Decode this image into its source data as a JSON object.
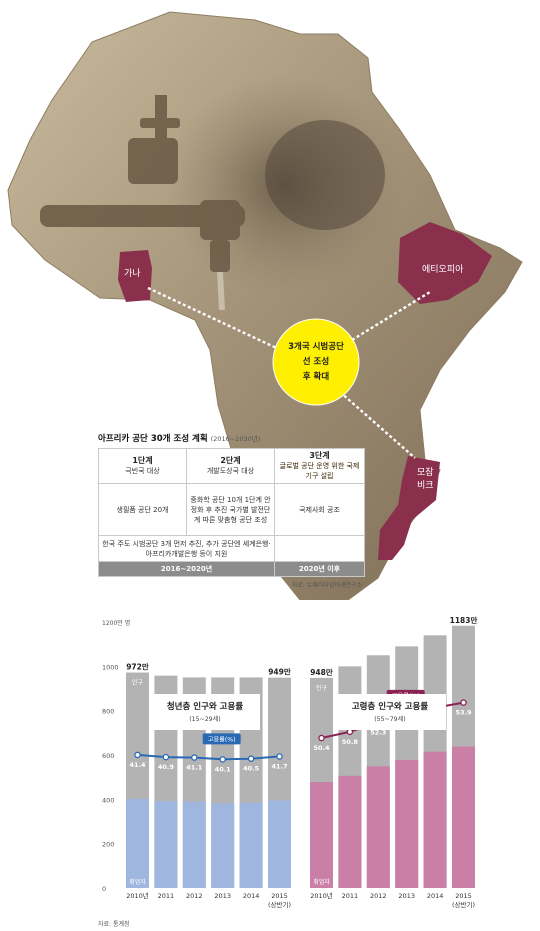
{
  "map": {
    "countries": [
      {
        "name": "가나",
        "color": "#8a2f4c"
      },
      {
        "name": "에티오피아",
        "color": "#8a2f4c"
      },
      {
        "name": "모잠비크",
        "color": "#8a2f4c"
      }
    ],
    "callout": {
      "line1": "3개국 시범공단",
      "line2": "선 조성",
      "line3": "후 확대",
      "color": "#ffef00"
    }
  },
  "plan": {
    "title": "아프리카 공단 30개 조성 계획",
    "subtitle": "(2016~2030년)",
    "stages": [
      {
        "name": "1단계",
        "desc": "극빈국 대상"
      },
      {
        "name": "2단계",
        "desc": "개발도상국 대상"
      },
      {
        "name": "3단계",
        "desc": "글로벌 공단 운영 위한 국제기구 설립"
      }
    ],
    "details": [
      "생필품 공단 20개",
      "중화학 공단 10개 1단계 안정화 후 추진 국가별 발전단계 따른 맞춤형 공단 조성",
      "국제사회 공조"
    ],
    "note": "한국 주도 시범공단 3개 먼저 추진, 추가 공단엔 세계은행·아프리카개발은행 등이 지원",
    "period1": "2016~2020년",
    "period2": "2020년 이후",
    "source": "자료: 뉴패러다임미래연구소"
  },
  "chart_data": [
    {
      "type": "bar",
      "title": "청년층 인구와 고용률",
      "subtitle": "(15~29세)",
      "categories": [
        "2010년",
        "2011",
        "2012",
        "2013",
        "2014",
        "2015"
      ],
      "category_note": "(상반기)",
      "ylim": [
        0,
        1200
      ],
      "yticks": [
        0,
        200,
        400,
        600,
        800,
        1000
      ],
      "ytop_label": "1200만 명",
      "series": [
        {
          "name": "인구",
          "values": [
            972,
            958,
            950,
            950,
            950,
            949
          ],
          "color": "#b3b3b3"
        },
        {
          "name": "취업자",
          "values": [
            402,
            392,
            390,
            382,
            385,
            395
          ],
          "color": "#9fb6df"
        },
        {
          "name": "고용률(%)",
          "values": [
            41.4,
            40.9,
            41.1,
            40.1,
            40.5,
            41.7
          ],
          "color": "#2a6ab5"
        }
      ],
      "top_labels": {
        "first": "972만",
        "last": "949만"
      },
      "axis_labels": {
        "population": "인구",
        "employed": "취업자",
        "rate": "고용률(%)"
      }
    },
    {
      "type": "bar",
      "title": "고령층 인구와 고용률",
      "subtitle": "(55~79세)",
      "categories": [
        "2010년",
        "2011",
        "2012",
        "2013",
        "2014",
        "2015"
      ],
      "category_note": "(상반기)",
      "ylim": [
        0,
        1200
      ],
      "series": [
        {
          "name": "인구",
          "values": [
            948,
            1000,
            1050,
            1090,
            1140,
            1183
          ],
          "color": "#b3b3b3"
        },
        {
          "name": "취업자",
          "values": [
            478,
            506,
            549,
            578,
            615,
            638
          ],
          "color": "#c97fa6"
        },
        {
          "name": "고용률(%)",
          "values": [
            50.4,
            50.8,
            52.3,
            53.0,
            53.9,
            53.9
          ],
          "color": "#8a2253"
        }
      ],
      "top_labels": {
        "first": "948만",
        "last": "1183만"
      },
      "axis_labels": {
        "population": "인구",
        "employed": "취업자",
        "rate": "고용률(%)"
      }
    }
  ],
  "source": "자료: 통계청"
}
